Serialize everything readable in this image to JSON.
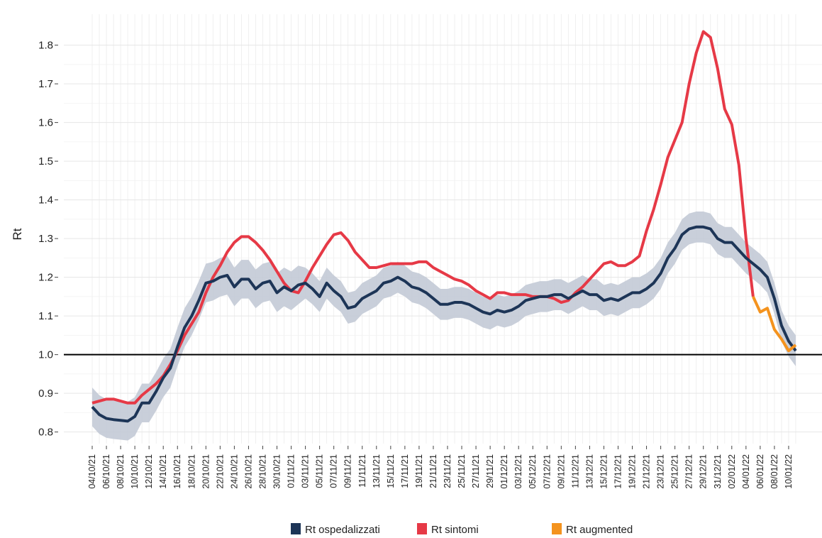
{
  "chart_data": {
    "type": "line",
    "y_label": "Rt",
    "categories": [
      "04/10/21",
      null,
      "06/10/21",
      null,
      "08/10/21",
      null,
      "10/10/21",
      null,
      "12/10/21",
      null,
      "14/10/21",
      null,
      "16/10/21",
      null,
      "18/10/21",
      null,
      "20/10/21",
      null,
      "22/10/21",
      null,
      "24/10/21",
      null,
      "26/10/21",
      null,
      "28/10/21",
      null,
      "30/10/21",
      null,
      "01/11/21",
      null,
      "03/11/21",
      null,
      "05/11/21",
      null,
      "07/11/21",
      null,
      "09/11/21",
      null,
      "11/11/21",
      null,
      "13/11/21",
      null,
      "15/11/21",
      null,
      "17/11/21",
      null,
      "19/11/21",
      null,
      "21/11/21",
      null,
      "23/11/21",
      null,
      "25/11/21",
      null,
      "27/11/21",
      null,
      "29/11/21",
      null,
      "01/12/21",
      null,
      "03/12/21",
      null,
      "05/12/21",
      null,
      "07/12/21",
      null,
      "09/12/21",
      null,
      "11/12/21",
      null,
      "13/12/21",
      null,
      "15/12/21",
      null,
      "17/12/21",
      null,
      "19/12/21",
      null,
      "21/12/21",
      null,
      "23/12/21",
      null,
      "25/12/21",
      null,
      "27/12/21",
      null,
      "29/12/21",
      null,
      "31/12/21",
      null,
      "02/01/22",
      null,
      "04/01/22",
      null,
      "06/01/22",
      null,
      "08/01/22",
      null,
      "10/01/22",
      null
    ],
    "series": [
      {
        "name": "Rt ospedalizzati",
        "color": "#1d3557",
        "band_color": "#c3cad6",
        "values": [
          0.865,
          0.845,
          0.835,
          0.832,
          0.83,
          0.828,
          0.84,
          0.875,
          0.875,
          0.905,
          0.94,
          0.965,
          1.02,
          1.07,
          1.1,
          1.14,
          1.185,
          1.19,
          1.2,
          1.205,
          1.175,
          1.195,
          1.195,
          1.17,
          1.185,
          1.19,
          1.16,
          1.175,
          1.165,
          1.18,
          1.185,
          1.17,
          1.15,
          1.185,
          1.165,
          1.15,
          1.12,
          1.125,
          1.145,
          1.155,
          1.165,
          1.185,
          1.19,
          1.2,
          1.19,
          1.175,
          1.17,
          1.16,
          1.145,
          1.13,
          1.13,
          1.135,
          1.135,
          1.13,
          1.12,
          1.11,
          1.105,
          1.115,
          1.11,
          1.115,
          1.125,
          1.14,
          1.145,
          1.15,
          1.15,
          1.155,
          1.155,
          1.145,
          1.155,
          1.165,
          1.155,
          1.155,
          1.14,
          1.145,
          1.14,
          1.15,
          1.16,
          1.16,
          1.17,
          1.185,
          1.21,
          1.25,
          1.275,
          1.31,
          1.325,
          1.33,
          1.33,
          1.325,
          1.3,
          1.29,
          1.29,
          1.27,
          1.25,
          1.235,
          1.22,
          1.2,
          1.145,
          1.075,
          1.035,
          1.01
        ],
        "upper": [
          0.915,
          0.895,
          0.885,
          0.882,
          0.88,
          0.878,
          0.89,
          0.925,
          0.925,
          0.955,
          0.99,
          1.015,
          1.07,
          1.12,
          1.15,
          1.19,
          1.235,
          1.24,
          1.25,
          1.255,
          1.225,
          1.245,
          1.245,
          1.22,
          1.235,
          1.24,
          1.21,
          1.225,
          1.215,
          1.23,
          1.225,
          1.21,
          1.19,
          1.225,
          1.205,
          1.19,
          1.16,
          1.165,
          1.185,
          1.195,
          1.205,
          1.225,
          1.23,
          1.24,
          1.23,
          1.215,
          1.21,
          1.2,
          1.185,
          1.17,
          1.17,
          1.175,
          1.175,
          1.17,
          1.16,
          1.15,
          1.145,
          1.155,
          1.15,
          1.155,
          1.165,
          1.18,
          1.185,
          1.19,
          1.19,
          1.195,
          1.195,
          1.185,
          1.195,
          1.205,
          1.195,
          1.195,
          1.18,
          1.185,
          1.18,
          1.19,
          1.2,
          1.2,
          1.21,
          1.225,
          1.25,
          1.29,
          1.315,
          1.35,
          1.365,
          1.37,
          1.37,
          1.365,
          1.34,
          1.33,
          1.33,
          1.31,
          1.29,
          1.275,
          1.26,
          1.24,
          1.185,
          1.115,
          1.075,
          1.05
        ],
        "lower": [
          0.815,
          0.795,
          0.785,
          0.782,
          0.78,
          0.778,
          0.79,
          0.825,
          0.825,
          0.855,
          0.89,
          0.915,
          0.97,
          1.02,
          1.05,
          1.09,
          1.135,
          1.14,
          1.15,
          1.155,
          1.125,
          1.145,
          1.145,
          1.12,
          1.135,
          1.14,
          1.11,
          1.125,
          1.115,
          1.13,
          1.145,
          1.13,
          1.11,
          1.145,
          1.125,
          1.11,
          1.08,
          1.085,
          1.105,
          1.115,
          1.125,
          1.145,
          1.15,
          1.16,
          1.15,
          1.135,
          1.13,
          1.12,
          1.105,
          1.09,
          1.09,
          1.095,
          1.095,
          1.09,
          1.08,
          1.07,
          1.065,
          1.075,
          1.07,
          1.075,
          1.085,
          1.1,
          1.105,
          1.11,
          1.11,
          1.115,
          1.115,
          1.105,
          1.115,
          1.125,
          1.115,
          1.115,
          1.1,
          1.105,
          1.1,
          1.11,
          1.12,
          1.12,
          1.13,
          1.145,
          1.17,
          1.21,
          1.235,
          1.27,
          1.285,
          1.29,
          1.29,
          1.285,
          1.26,
          1.25,
          1.25,
          1.23,
          1.21,
          1.195,
          1.18,
          1.16,
          1.105,
          1.035,
          0.995,
          0.97
        ]
      },
      {
        "name": "Rt sintomi",
        "color": "#e63946",
        "values": [
          0.875,
          0.88,
          0.885,
          0.885,
          0.88,
          0.875,
          0.875,
          0.895,
          0.91,
          0.925,
          0.945,
          0.975,
          1.01,
          1.05,
          1.08,
          1.11,
          1.16,
          1.2,
          1.23,
          1.265,
          1.29,
          1.305,
          1.305,
          1.29,
          1.27,
          1.245,
          1.215,
          1.185,
          1.165,
          1.16,
          1.19,
          1.225,
          1.255,
          1.285,
          1.31,
          1.315,
          1.295,
          1.265,
          1.245,
          1.225,
          1.225,
          1.23,
          1.235,
          1.235,
          1.235,
          1.235,
          1.24,
          1.24,
          1.225,
          1.215,
          1.205,
          1.195,
          1.19,
          1.18,
          1.165,
          1.155,
          1.145,
          1.16,
          1.16,
          1.155,
          1.155,
          1.155,
          1.15,
          1.15,
          1.15,
          1.145,
          1.135,
          1.14,
          1.16,
          1.175,
          1.195,
          1.215,
          1.235,
          1.24,
          1.23,
          1.23,
          1.24,
          1.255,
          1.32,
          1.375,
          1.44,
          1.51,
          1.555,
          1.6,
          1.7,
          1.78,
          1.835,
          1.82,
          1.74,
          1.635,
          1.595,
          1.49,
          1.3,
          1.15,
          null,
          null,
          null,
          null,
          null,
          null
        ]
      },
      {
        "name": "Rt augmented",
        "color": "#f4931e",
        "values": [
          null,
          null,
          null,
          null,
          null,
          null,
          null,
          null,
          null,
          null,
          null,
          null,
          null,
          null,
          null,
          null,
          null,
          null,
          null,
          null,
          null,
          null,
          null,
          null,
          null,
          null,
          null,
          null,
          null,
          null,
          null,
          null,
          null,
          null,
          null,
          null,
          null,
          null,
          null,
          null,
          null,
          null,
          null,
          null,
          null,
          null,
          null,
          null,
          null,
          null,
          null,
          null,
          null,
          null,
          null,
          null,
          null,
          null,
          null,
          null,
          null,
          null,
          null,
          null,
          null,
          null,
          null,
          null,
          null,
          null,
          null,
          null,
          null,
          null,
          null,
          null,
          null,
          null,
          null,
          null,
          null,
          null,
          null,
          null,
          null,
          null,
          null,
          null,
          null,
          null,
          null,
          null,
          null,
          1.15,
          1.11,
          1.12,
          1.065,
          1.04,
          1.01,
          1.025
        ]
      }
    ],
    "ylim": [
      0.77,
      1.88
    ],
    "yticks": [
      0.8,
      0.9,
      {
        "value": 1,
        "label": "1.0"
      },
      1.1,
      1.2,
      1.3,
      1.4,
      1.5,
      1.6,
      1.7,
      1.8
    ],
    "reference_line": 1,
    "grid": true,
    "legend": "bottom"
  }
}
